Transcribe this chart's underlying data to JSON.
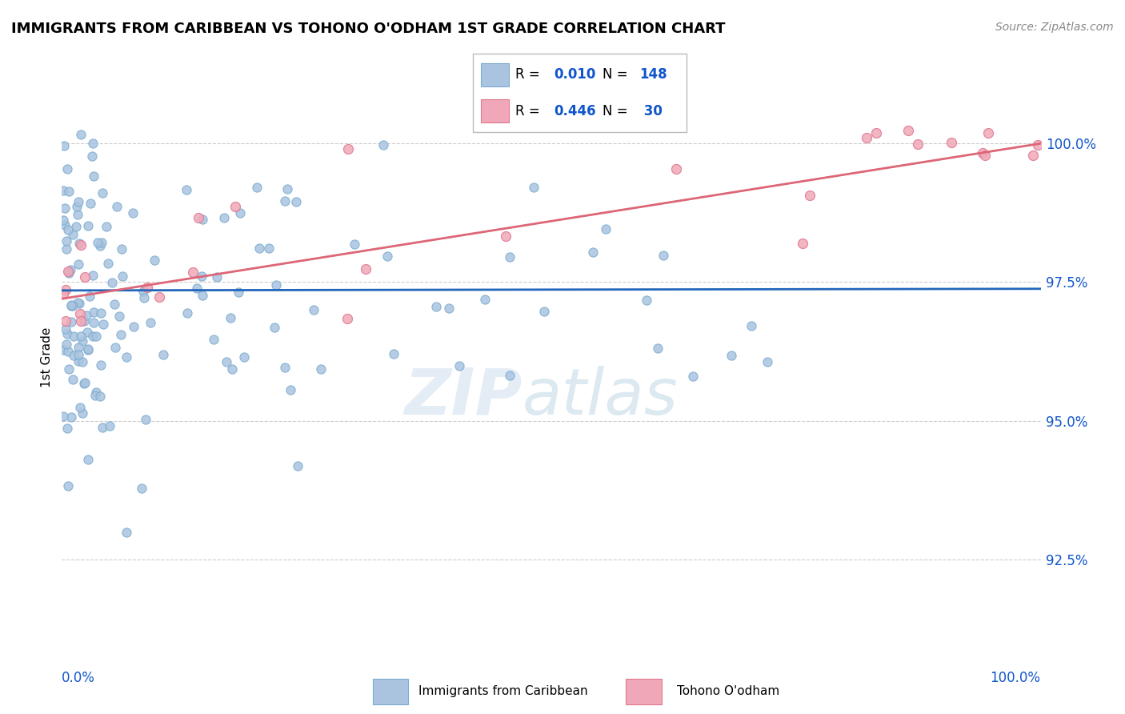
{
  "title": "IMMIGRANTS FROM CARIBBEAN VS TOHONO O'ODHAM 1ST GRADE CORRELATION CHART",
  "source": "Source: ZipAtlas.com",
  "ylabel": "1st Grade",
  "ytick_vals": [
    92.5,
    95.0,
    97.5,
    100.0
  ],
  "ytick_labels": [
    "92.5%",
    "95.0%",
    "97.5%",
    "100.0%"
  ],
  "xlim": [
    0.0,
    100.0
  ],
  "ylim": [
    91.0,
    101.3
  ],
  "blue_R": 0.01,
  "blue_N": 148,
  "pink_R": 0.446,
  "pink_N": 30,
  "blue_color": "#aac4e0",
  "pink_color": "#f0a8b8",
  "blue_edge_color": "#7aabce",
  "pink_edge_color": "#e07890",
  "blue_trend_color": "#2266bb",
  "pink_trend_color": "#dd6677",
  "label_color": "#1155cc",
  "tick_color": "#1155cc",
  "grid_color": "#cccccc",
  "legend_label_blue": "Immigrants from Caribbean",
  "legend_label_pink": "Tohono O'odham",
  "blue_trend_intercept": 97.35,
  "blue_trend_slope": 0.0005,
  "pink_trend_intercept": 97.2,
  "pink_trend_slope": 0.027
}
